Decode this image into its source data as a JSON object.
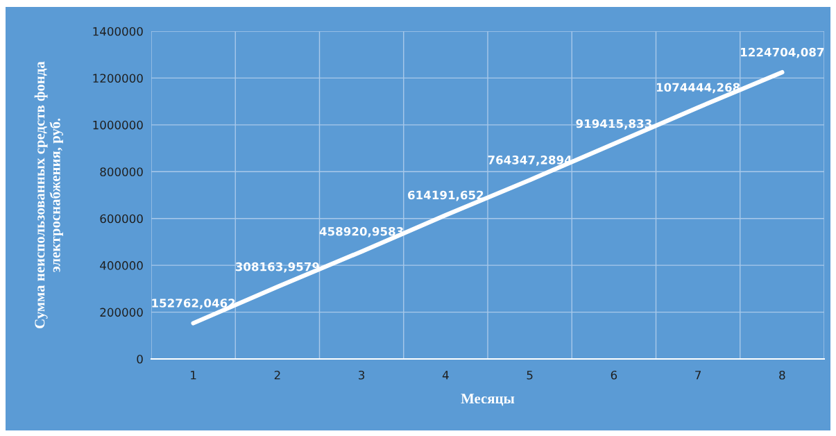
{
  "chart_data": {
    "type": "line",
    "xlabel": "Месяцы",
    "ylabel": "Сумма неиспользованных средств фонда\nэлектроснабжения, руб.",
    "categories": [
      "1",
      "2",
      "3",
      "4",
      "5",
      "6",
      "7",
      "8"
    ],
    "values": [
      152762.0462,
      308163.9579,
      458920.9583,
      614191.652,
      764347.2894,
      919415.833,
      1074444.268,
      1224704.087
    ],
    "value_labels": [
      "152762,0462",
      "308163,9579",
      "458920,9583",
      "614191,652",
      "764347,2894",
      "919415,833",
      "1074444,268",
      "1224704,087"
    ],
    "color": "#ffffff",
    "ylim": [
      0,
      1400000
    ],
    "yticks": [
      0,
      200000,
      400000,
      600000,
      800000,
      1000000,
      1200000,
      1400000
    ],
    "grid": true,
    "marker": "none",
    "line_style": "solid"
  }
}
